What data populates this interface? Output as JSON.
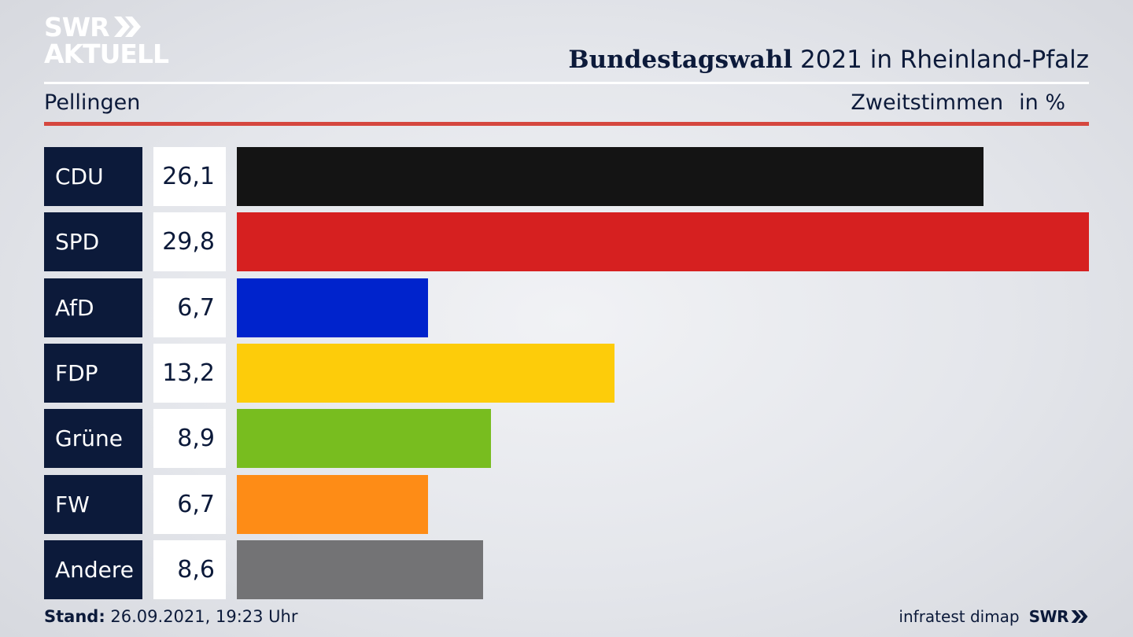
{
  "logo": {
    "line1": "SWR",
    "line2": "AKTUELL"
  },
  "header": {
    "title_bold": "Bundestagswahl",
    "title_rest": " 2021 in Rheinland-Pfalz",
    "subtitle": "Pellingen",
    "measure": "Zweitstimmen",
    "unit": "in %"
  },
  "chart_data": {
    "type": "bar",
    "orientation": "horizontal",
    "categories": [
      "CDU",
      "SPD",
      "AfD",
      "FDP",
      "Grüne",
      "FW",
      "Andere"
    ],
    "values": [
      26.1,
      29.8,
      6.7,
      13.2,
      8.9,
      6.7,
      8.6
    ],
    "value_labels": [
      "26,1",
      "29,8",
      "6,7",
      "13,2",
      "8,9",
      "6,7",
      "8,6"
    ],
    "colors": [
      "#141414",
      "#d62020",
      "#0023cc",
      "#fdcc0a",
      "#78bd1f",
      "#fe8c16",
      "#737375"
    ],
    "title": "Bundestagswahl 2021 in Rheinland-Pfalz",
    "xlabel": "",
    "ylabel": "",
    "xlim": [
      0,
      29.8
    ],
    "grid": false,
    "legend": "none"
  },
  "footer": {
    "stand_label": "Stand:",
    "stand_value": " 26.09.2021, 19:23 Uhr",
    "source": "infratest dimap",
    "brand": "SWR"
  },
  "colors": {
    "navy": "#0c1a3a",
    "accent_red": "#d5473f"
  }
}
